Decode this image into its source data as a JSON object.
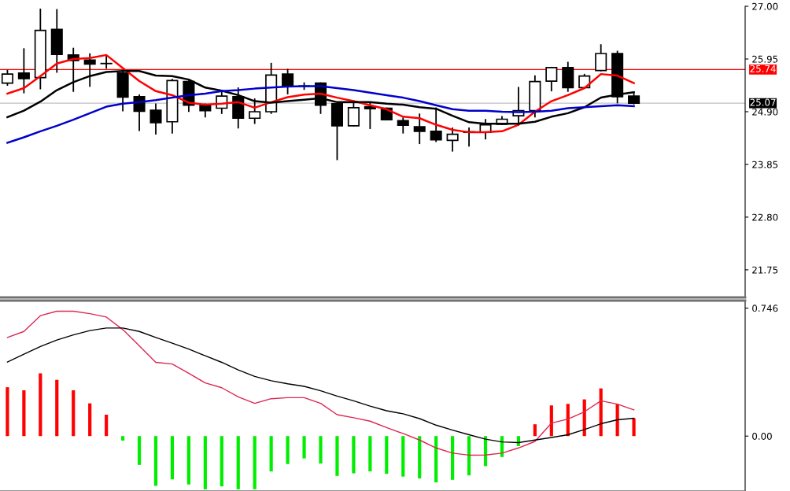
{
  "chart_data": [
    {
      "type": "candlestick",
      "categories": [
        null,
        null,
        null,
        null,
        null,
        null,
        null,
        null,
        null,
        null,
        null,
        null,
        null,
        null,
        null,
        null,
        null,
        null,
        null,
        null,
        null,
        null,
        null,
        null,
        null,
        null,
        null,
        null,
        null,
        null,
        null,
        null,
        null,
        null,
        null,
        null,
        null,
        null,
        null
      ],
      "ohlc": [
        [
          25.47,
          25.72,
          25.43,
          25.65
        ],
        [
          25.67,
          26.15,
          25.28,
          25.56
        ],
        [
          25.58,
          26.94,
          25.36,
          26.52
        ],
        [
          26.54,
          26.93,
          25.69,
          26.04
        ],
        [
          26.03,
          26.16,
          25.31,
          25.92
        ],
        [
          25.93,
          26.05,
          25.41,
          25.85
        ],
        [
          25.86,
          26.0,
          25.77,
          25.86
        ],
        [
          25.67,
          25.72,
          24.92,
          25.19
        ],
        [
          25.2,
          25.23,
          24.53,
          24.91
        ],
        [
          24.93,
          25.05,
          24.46,
          24.68
        ],
        [
          24.7,
          25.54,
          24.48,
          25.52
        ],
        [
          25.5,
          25.51,
          24.91,
          25.03
        ],
        [
          25.03,
          25.05,
          24.8,
          24.92
        ],
        [
          24.97,
          25.31,
          24.87,
          25.21
        ],
        [
          25.2,
          25.37,
          24.58,
          24.77
        ],
        [
          24.77,
          25.15,
          24.67,
          24.9
        ],
        [
          24.9,
          25.86,
          24.87,
          25.63
        ],
        [
          25.65,
          25.74,
          25.26,
          25.41
        ],
        [
          25.41,
          25.47,
          25.35,
          25.41
        ],
        [
          25.47,
          25.47,
          24.87,
          25.03
        ],
        [
          25.06,
          25.06,
          23.95,
          24.62
        ],
        [
          24.62,
          25.06,
          24.62,
          24.98
        ],
        [
          25.0,
          25.08,
          24.57,
          24.96
        ],
        [
          24.97,
          24.97,
          24.74,
          24.74
        ],
        [
          24.72,
          24.77,
          24.48,
          24.63
        ],
        [
          24.6,
          24.85,
          24.27,
          24.51
        ],
        [
          24.51,
          24.97,
          24.31,
          24.34
        ],
        [
          24.33,
          24.57,
          24.12,
          24.45
        ],
        [
          24.49,
          24.57,
          24.22,
          24.5
        ],
        [
          24.49,
          24.74,
          24.36,
          24.64
        ],
        [
          24.65,
          24.8,
          24.65,
          24.75
        ],
        [
          24.82,
          25.38,
          24.64,
          24.92
        ],
        [
          24.92,
          25.61,
          24.8,
          25.5
        ],
        [
          25.51,
          25.78,
          25.32,
          25.78
        ],
        [
          25.78,
          25.88,
          25.31,
          25.38
        ],
        [
          25.38,
          25.64,
          25.38,
          25.61
        ],
        [
          25.72,
          26.23,
          25.72,
          26.06
        ],
        [
          26.06,
          26.1,
          25.08,
          25.2
        ],
        [
          25.21,
          25.26,
          25.06,
          25.07
        ]
      ],
      "series": [
        {
          "type": "line",
          "color": "#ff0000",
          "values": [
            25.26,
            25.37,
            25.61,
            25.86,
            25.95,
            25.97,
            26.03,
            25.77,
            25.51,
            25.31,
            25.23,
            25.08,
            25.04,
            25.06,
            25.09,
            24.98,
            25.09,
            25.19,
            25.24,
            25.26,
            25.18,
            25.11,
            25.03,
            24.95,
            24.8,
            24.77,
            24.64,
            24.54,
            24.49,
            24.49,
            24.51,
            24.64,
            24.9,
            25.11,
            25.23,
            25.37,
            25.65,
            25.62,
            25.47
          ]
        },
        {
          "type": "line",
          "color": "#000000",
          "values": [
            24.79,
            24.92,
            25.1,
            25.33,
            25.49,
            25.61,
            25.69,
            25.71,
            25.71,
            25.62,
            25.61,
            25.54,
            25.38,
            25.32,
            25.23,
            25.11,
            25.08,
            25.11,
            25.14,
            25.17,
            25.09,
            25.09,
            25.09,
            25.06,
            25.04,
            24.99,
            24.96,
            24.82,
            24.69,
            24.66,
            24.66,
            24.66,
            24.7,
            24.8,
            24.87,
            24.99,
            25.18,
            25.24,
            25.29
          ]
        },
        {
          "type": "line",
          "color": "#0000cc",
          "values": [
            24.28,
            24.39,
            24.51,
            24.62,
            24.74,
            24.87,
            25.0,
            25.06,
            25.09,
            25.13,
            25.18,
            25.23,
            25.26,
            25.31,
            25.33,
            25.36,
            25.38,
            25.4,
            25.41,
            25.41,
            25.37,
            25.33,
            25.28,
            25.23,
            25.18,
            25.11,
            25.03,
            24.95,
            24.92,
            24.92,
            24.9,
            24.89,
            24.9,
            24.92,
            24.97,
            24.99,
            25.01,
            25.03,
            25.01
          ]
        }
      ],
      "ylim": [
        21.2,
        27.0
      ],
      "yticks": [
        {
          "value": 27.0,
          "label": "27.00"
        },
        25.95,
        {
          "value": 24.9,
          "label": "24.90"
        },
        23.85,
        {
          "value": 22.8,
          "label": "22.80"
        },
        21.75
      ],
      "ref_lines": [
        {
          "axis": "y",
          "value": 25.74,
          "label": "25.74",
          "color": "#ff0000"
        },
        {
          "axis": "y",
          "value": 25.07,
          "label": "25.07",
          "color": "#c0c0c0"
        }
      ],
      "tick_labels": "y"
    },
    {
      "type": "bar",
      "categories": [
        null,
        null,
        null,
        null,
        null,
        null,
        null,
        null,
        null,
        null,
        null,
        null,
        null,
        null,
        null,
        null,
        null,
        null,
        null,
        null,
        null,
        null,
        null,
        null,
        null,
        null,
        null,
        null,
        null,
        null,
        null,
        null,
        null,
        null,
        null,
        null,
        null,
        null,
        null
      ],
      "series": [
        {
          "type": "bar",
          "colors": [
            "#ff0000",
            "#ff0000",
            "#ff0000",
            "#ff0000",
            "#ff0000",
            "#ff0000",
            "#ff0000",
            "#00ee00",
            "#00ee00",
            "#00ee00",
            "#00ee00",
            "#00ee00",
            "#00ee00",
            "#00ee00",
            "#00ee00",
            "#00ee00",
            "#00ee00",
            "#00ee00",
            "#00ee00",
            "#00ee00",
            "#00ee00",
            "#00ee00",
            "#00ee00",
            "#00ee00",
            "#00ee00",
            "#00ee00",
            "#00ee00",
            "#00ee00",
            "#00ee00",
            "#00ee00",
            "#00ee00",
            "#00ee00",
            "#ff0000",
            "#ff0000",
            "#ff0000",
            "#ff0000",
            "#ff0000",
            "#ff0000",
            "#ff0000"
          ],
          "values": [
            0.285,
            0.267,
            0.366,
            0.328,
            0.267,
            0.191,
            0.125,
            -0.026,
            -0.168,
            -0.29,
            -0.252,
            -0.282,
            -0.31,
            -0.293,
            -0.31,
            -0.31,
            -0.206,
            -0.163,
            -0.13,
            -0.16,
            -0.232,
            -0.217,
            -0.206,
            -0.22,
            -0.236,
            -0.247,
            -0.27,
            -0.255,
            -0.229,
            -0.175,
            -0.122,
            -0.058,
            0.069,
            0.179,
            0.188,
            0.214,
            0.278,
            0.186,
            0.104
          ]
        },
        {
          "type": "line",
          "color": "#dc2850",
          "values": [
            0.575,
            0.61,
            0.702,
            0.728,
            0.728,
            0.714,
            0.694,
            0.621,
            0.526,
            0.43,
            0.42,
            0.366,
            0.31,
            0.282,
            0.229,
            0.191,
            0.218,
            0.224,
            0.224,
            0.191,
            0.125,
            0.107,
            0.087,
            0.05,
            0.015,
            -0.023,
            -0.069,
            -0.099,
            -0.111,
            -0.11,
            -0.099,
            -0.069,
            -0.031,
            0.076,
            0.099,
            0.142,
            0.206,
            0.186,
            0.153
          ]
        },
        {
          "type": "line",
          "color": "#000000",
          "values": [
            0.432,
            0.478,
            0.522,
            0.56,
            0.59,
            0.615,
            0.63,
            0.63,
            0.61,
            0.575,
            0.542,
            0.507,
            0.468,
            0.43,
            0.386,
            0.348,
            0.323,
            0.305,
            0.29,
            0.264,
            0.233,
            0.206,
            0.175,
            0.148,
            0.13,
            0.102,
            0.064,
            0.035,
            0.008,
            -0.018,
            -0.034,
            -0.038,
            -0.023,
            -0.008,
            0.008,
            0.038,
            0.072,
            0.095,
            0.104
          ]
        }
      ],
      "ylim": [
        -0.32,
        0.79
      ],
      "yticks": [
        0.746,
        {
          "value": 0,
          "label": "0.00"
        }
      ],
      "tick_labels": "y"
    }
  ]
}
